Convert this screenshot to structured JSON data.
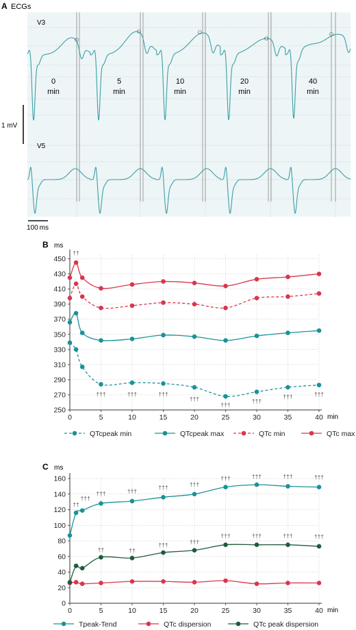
{
  "panel_a": {
    "letter": "A",
    "title": "ECGs",
    "leads": [
      "V3",
      "V5"
    ],
    "time_labels": [
      {
        "value": "0",
        "unit": "min"
      },
      {
        "value": "5",
        "unit": "min"
      },
      {
        "value": "10",
        "unit": "min"
      },
      {
        "value": "20",
        "unit": "min"
      },
      {
        "value": "40",
        "unit": "min"
      }
    ],
    "amp_scale": "1 mV",
    "time_scale": "100 ms",
    "trace_color": "#3a9fa6"
  },
  "chart_data": [
    {
      "panel": "B",
      "type": "line",
      "ylabel": "ms",
      "xlabel": "min",
      "x": [
        0,
        1,
        2,
        5,
        10,
        15,
        20,
        25,
        30,
        35,
        40
      ],
      "xticks": [
        0,
        5,
        10,
        15,
        20,
        25,
        30,
        35,
        40
      ],
      "yticks": [
        250,
        270,
        290,
        310,
        330,
        350,
        370,
        390,
        410,
        430,
        450
      ],
      "ylim": [
        250,
        455
      ],
      "xlim": [
        0,
        40
      ],
      "grid": true,
      "legend": "bottom",
      "series": [
        {
          "name": "QTcpeak min",
          "color": "#1a9298",
          "dashed": true,
          "values": [
            339,
            330,
            307,
            284,
            286,
            285,
            280,
            268,
            274,
            280,
            283
          ]
        },
        {
          "name": "QTcpeak max",
          "color": "#1a9298",
          "dashed": false,
          "values": [
            366,
            378,
            352,
            342,
            344,
            349,
            347,
            342,
            348,
            352,
            355
          ]
        },
        {
          "name": "QTc min",
          "color": "#d9364d",
          "dashed": true,
          "values": [
            398,
            417,
            400,
            385,
            388,
            392,
            390,
            385,
            398,
            400,
            404
          ]
        },
        {
          "name": "QTc max",
          "color": "#d9364d",
          "dashed": false,
          "values": [
            425,
            445,
            425,
            411,
            416,
            420,
            418,
            414,
            423,
            426,
            430
          ]
        }
      ],
      "annotations": [
        {
          "x": 1,
          "y": 455,
          "text": "††"
        },
        {
          "x": 5,
          "y": 268,
          "text": "†††"
        },
        {
          "x": 10,
          "y": 268,
          "text": "†††"
        },
        {
          "x": 15,
          "y": 268,
          "text": "†††"
        },
        {
          "x": 20,
          "y": 262,
          "text": "†††"
        },
        {
          "x": 25,
          "y": 254,
          "text": "†††"
        },
        {
          "x": 30,
          "y": 259,
          "text": "†††"
        },
        {
          "x": 35,
          "y": 265,
          "text": "†††"
        },
        {
          "x": 40,
          "y": 268,
          "text": "†††"
        }
      ]
    },
    {
      "panel": "C",
      "type": "line",
      "ylabel": "ms",
      "xlabel": "min",
      "x": [
        0,
        1,
        2,
        5,
        10,
        15,
        20,
        25,
        30,
        35,
        40
      ],
      "xticks": [
        0,
        5,
        10,
        15,
        20,
        25,
        30,
        35,
        40
      ],
      "yticks": [
        0,
        20,
        40,
        60,
        80,
        100,
        120,
        140,
        160
      ],
      "ylim": [
        0,
        160
      ],
      "xlim": [
        0,
        40
      ],
      "grid": true,
      "legend": "bottom",
      "series": [
        {
          "name": "Tpeak-Tend",
          "color": "#1a9298",
          "dashed": false,
          "values": [
            87,
            116,
            119,
            128,
            131,
            136,
            140,
            149,
            152,
            150,
            149
          ]
        },
        {
          "name": "QTc dispersion",
          "color": "#d9364d",
          "dashed": false,
          "values": [
            26,
            27,
            25,
            26,
            28,
            28,
            27,
            29,
            25,
            26,
            26
          ]
        },
        {
          "name": "QTc peak dispersion",
          "color": "#1e5b3c",
          "dashed": false,
          "values": [
            27,
            48,
            45,
            59,
            58,
            65,
            68,
            75,
            75,
            75,
            73
          ]
        }
      ],
      "annotations": [
        {
          "x": 1,
          "y": 124,
          "text": "††"
        },
        {
          "x": 2.5,
          "y": 132,
          "text": "†††"
        },
        {
          "x": 5,
          "y": 138,
          "text": "†††"
        },
        {
          "x": 10,
          "y": 141,
          "text": "†††"
        },
        {
          "x": 15,
          "y": 146,
          "text": "†††"
        },
        {
          "x": 20,
          "y": 150,
          "text": "†††"
        },
        {
          "x": 25,
          "y": 158,
          "text": "†††"
        },
        {
          "x": 30,
          "y": 160,
          "text": "†††"
        },
        {
          "x": 35,
          "y": 160,
          "text": "†††"
        },
        {
          "x": 40,
          "y": 159,
          "text": "†††"
        },
        {
          "x": 5,
          "y": 66,
          "text": "††"
        },
        {
          "x": 10,
          "y": 65,
          "text": "††"
        },
        {
          "x": 15,
          "y": 72,
          "text": "†††"
        },
        {
          "x": 20,
          "y": 76,
          "text": "†††"
        },
        {
          "x": 25,
          "y": 84,
          "text": "†††"
        },
        {
          "x": 30,
          "y": 84,
          "text": "†††"
        },
        {
          "x": 35,
          "y": 84,
          "text": "†††"
        },
        {
          "x": 40,
          "y": 83,
          "text": "†††"
        }
      ]
    }
  ],
  "panel_labels": {
    "b": "B",
    "c": "C"
  }
}
